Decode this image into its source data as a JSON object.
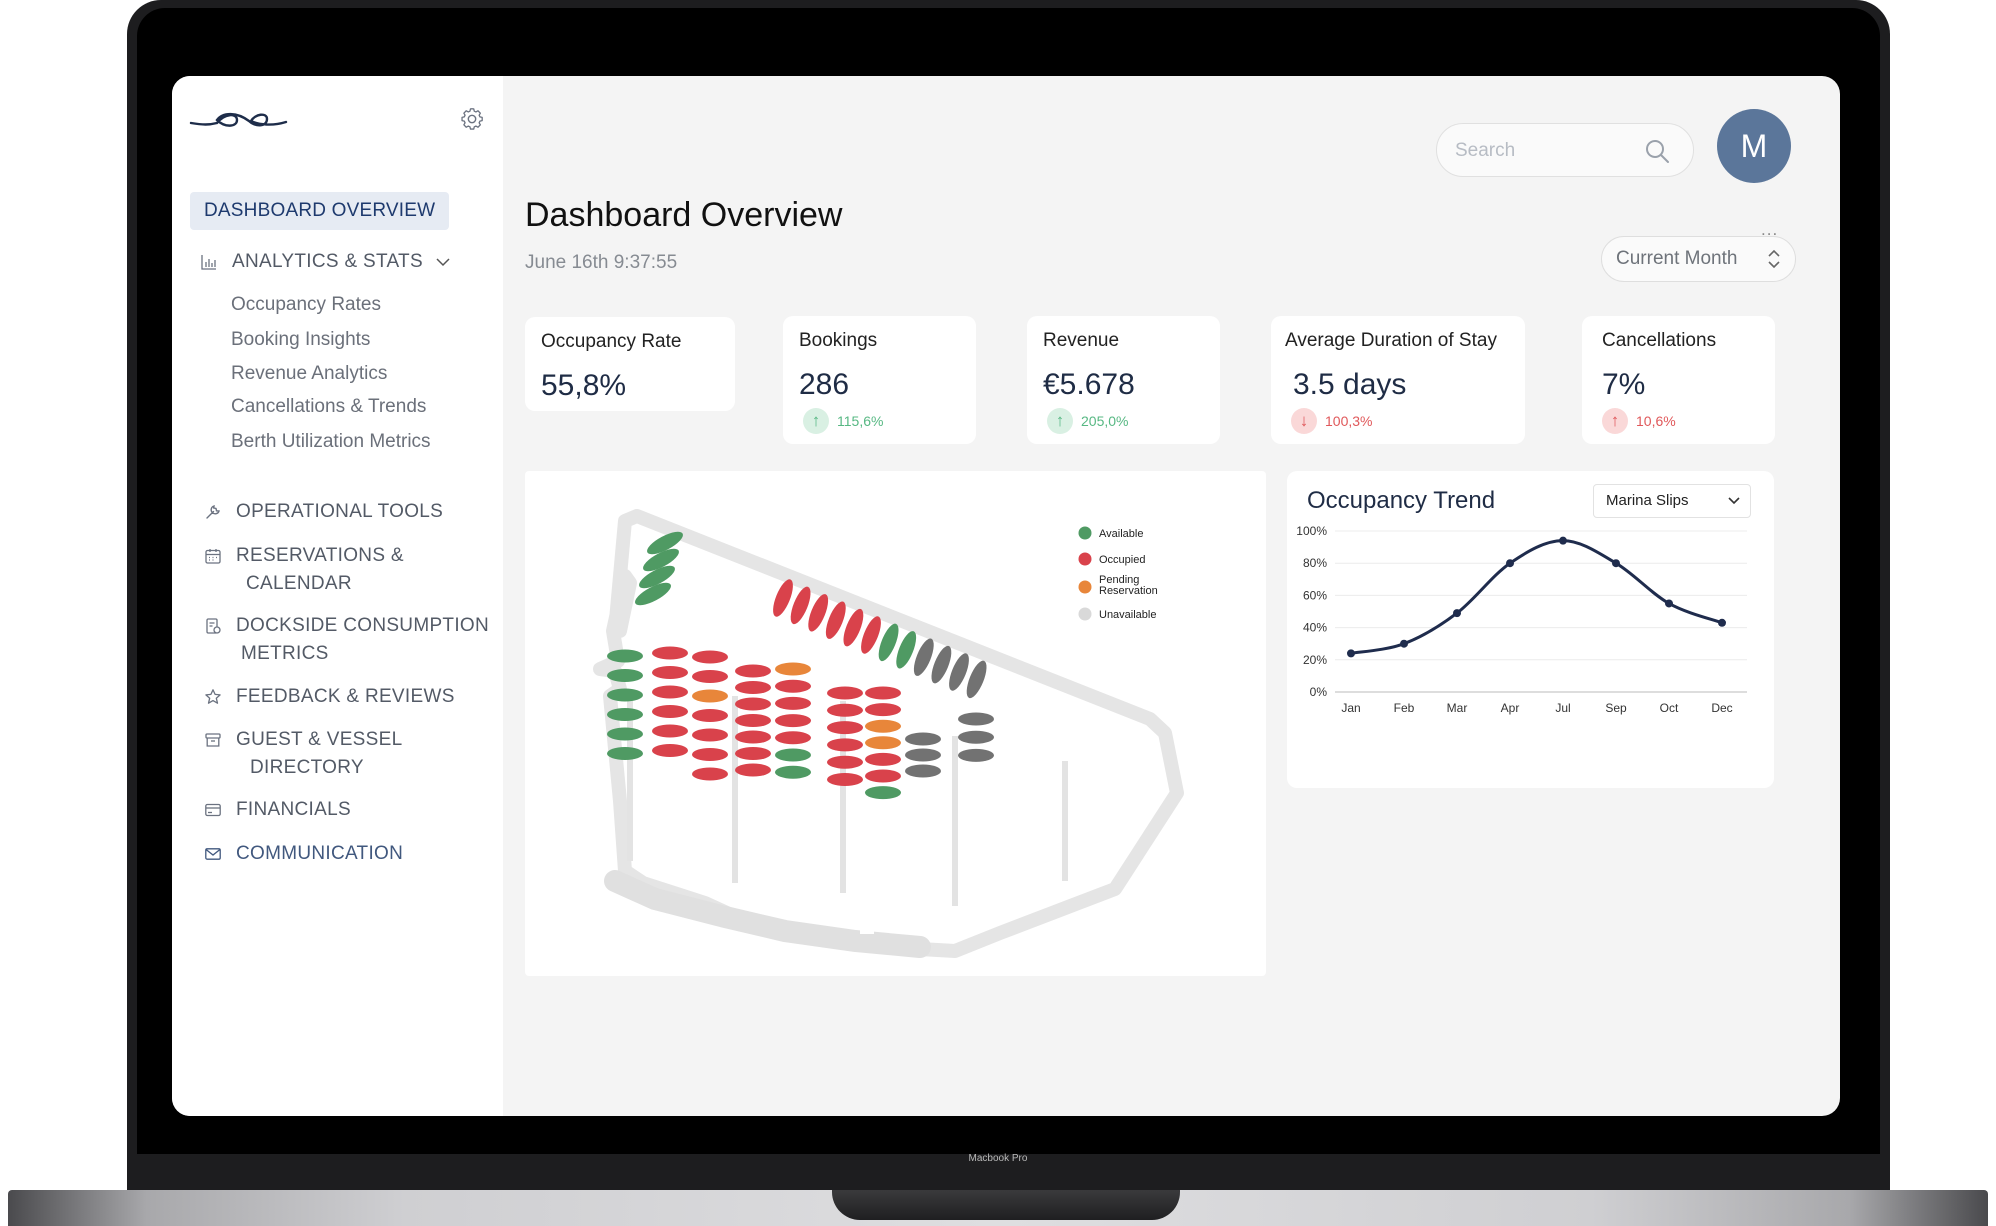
{
  "device": {
    "label": "Macbook Pro"
  },
  "sidebar": {
    "active": "DASHBOARD OVERVIEW",
    "analytics": {
      "label": "ANALYTICS & STATS",
      "items": [
        "Occupancy Rates",
        "Booking Insights",
        "Revenue Analytics",
        "Cancellations & Trends",
        "Berth Utilization Metrics"
      ]
    },
    "items": [
      {
        "label": "OPERATIONAL TOOLS",
        "icon": "wrench-icon"
      },
      {
        "label": "RESERVATIONS &",
        "label2": "CALENDAR",
        "icon": "calendar-icon"
      },
      {
        "label": "DOCKSIDE CONSUMPTION",
        "label2": "METRICS",
        "icon": "meter-icon"
      },
      {
        "label": "FEEDBACK & REVIEWS",
        "icon": "star-icon"
      },
      {
        "label": "GUEST & VESSEL",
        "label2": "DIRECTORY",
        "icon": "archive-icon"
      },
      {
        "label": "FINANCIALS",
        "icon": "card-icon"
      },
      {
        "label": "COMMUNICATION",
        "icon": "mail-icon"
      }
    ]
  },
  "header": {
    "search_placeholder": "Search",
    "avatar_initial": "M",
    "title": "Dashboard Overview",
    "date": "June 16th 9:37:55",
    "more": "...",
    "period": "Current Month"
  },
  "kpis": [
    {
      "label": "Occupancy Rate",
      "value": "55,8%"
    },
    {
      "label": "Bookings",
      "value": "286",
      "delta": "115,6%",
      "direction": "up"
    },
    {
      "label": "Revenue",
      "value": "€5.678",
      "delta": "205,0%",
      "direction": "up"
    },
    {
      "label": "Average Duration of Stay",
      "value": "3.5 days",
      "delta": "100,3%",
      "direction": "down"
    },
    {
      "label": "Cancellations",
      "value": "7%",
      "delta": "10,6%",
      "direction": "up-negative"
    }
  ],
  "map": {
    "legend": [
      {
        "label": "Available",
        "color": "#4f9a63"
      },
      {
        "label": "Occupied",
        "color": "#d9424b"
      },
      {
        "label": "Pending",
        "label2": "Reservation",
        "color": "#e8863a"
      },
      {
        "label": "Unavailable",
        "color": "#d9d9d9"
      }
    ],
    "status_colors": {
      "available": "#4f9a63",
      "occupied": "#d9424b",
      "pending": "#e8863a",
      "unavailable": "#727272"
    },
    "angled_row": [
      "occupied",
      "occupied",
      "occupied",
      "occupied",
      "occupied",
      "occupied",
      "available",
      "available",
      "unavailable",
      "unavailable",
      "unavailable",
      "unavailable"
    ],
    "top_slips": [
      "available",
      "available",
      "available",
      "available"
    ],
    "columns": [
      [
        "available",
        "available",
        "available",
        "available",
        "available",
        "available"
      ],
      [
        "occupied",
        "occupied",
        "occupied",
        "occupied",
        "occupied",
        "occupied"
      ],
      [
        "occupied",
        "occupied",
        "pending",
        "occupied",
        "occupied",
        "occupied",
        "occupied"
      ],
      [
        "occupied",
        "occupied",
        "occupied",
        "occupied",
        "occupied",
        "occupied",
        "occupied"
      ],
      [
        "pending",
        "occupied",
        "occupied",
        "occupied",
        "occupied",
        "available",
        "available"
      ],
      [
        "occupied",
        "occupied",
        "occupied",
        "occupied",
        "occupied",
        "occupied"
      ],
      [
        "occupied",
        "occupied",
        "pending",
        "pending",
        "occupied",
        "occupied",
        "available"
      ],
      [
        "unavailable",
        "unavailable",
        "unavailable"
      ],
      [
        "unavailable",
        "unavailable",
        "unavailable"
      ]
    ]
  },
  "trend": {
    "title": "Occupancy Trend",
    "selector": "Marina Slips"
  },
  "chart_data": {
    "type": "line",
    "title": "Occupancy Trend",
    "x": [
      "Jan",
      "Feb",
      "Mar",
      "Apr",
      "Jul",
      "Sep",
      "Oct",
      "Dec"
    ],
    "series": [
      {
        "values": [
          24,
          30,
          49,
          80,
          94,
          80,
          55,
          43
        ]
      }
    ],
    "y_ticks": [
      "100%",
      "80%",
      "60%",
      "40%",
      "20%",
      "0%"
    ],
    "ylim": [
      0,
      100
    ],
    "grid": true,
    "color": "#1f2c4d"
  }
}
